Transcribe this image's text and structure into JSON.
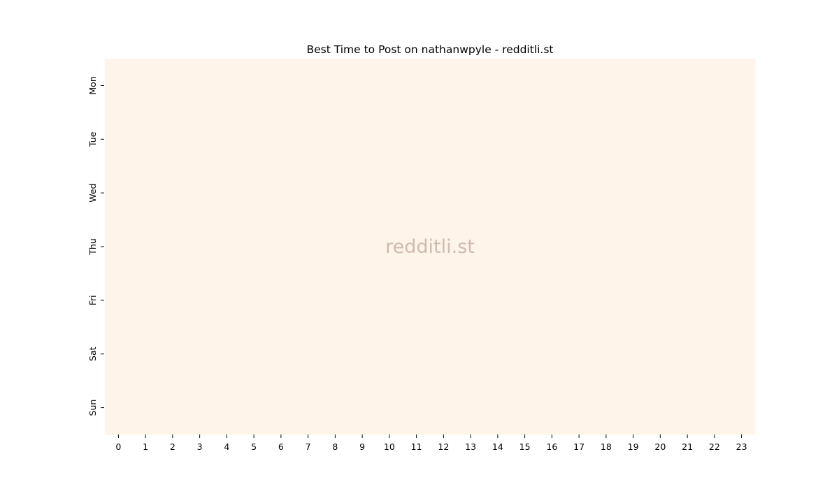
{
  "chart_data": {
    "type": "heatmap",
    "title": "Best Time to Post on nathanwpyle - redditli.st",
    "xlabel": "",
    "ylabel": "",
    "x_categories": [
      "0",
      "1",
      "2",
      "3",
      "4",
      "5",
      "6",
      "7",
      "8",
      "9",
      "10",
      "11",
      "12",
      "13",
      "14",
      "15",
      "16",
      "17",
      "18",
      "19",
      "20",
      "21",
      "22",
      "23"
    ],
    "y_categories": [
      "Mon",
      "Tue",
      "Wed",
      "Thu",
      "Fri",
      "Sat",
      "Sun"
    ],
    "values": [
      [
        0,
        0,
        0,
        0,
        0,
        0,
        0,
        0,
        0,
        0,
        0,
        0,
        0,
        0,
        0,
        0,
        0,
        0,
        0,
        0,
        0,
        0,
        0,
        0
      ],
      [
        0,
        0,
        0,
        0,
        0,
        0,
        0,
        0,
        0,
        0,
        0,
        0,
        0,
        0,
        0,
        0,
        0,
        0,
        0,
        0,
        0,
        0,
        0,
        0
      ],
      [
        0,
        0,
        0,
        0,
        0,
        0,
        0,
        0,
        0,
        0,
        0,
        0,
        0,
        0,
        0,
        0,
        0,
        0,
        0,
        0,
        0,
        0,
        0,
        0
      ],
      [
        0,
        0,
        0,
        0,
        0,
        0,
        0,
        0,
        0,
        0,
        0,
        0,
        0,
        0,
        0,
        0,
        0,
        0,
        0,
        0,
        0,
        0,
        0,
        0
      ],
      [
        0,
        0,
        0,
        0,
        0,
        0,
        0,
        0,
        0,
        0,
        0,
        0,
        0,
        0,
        0,
        0,
        0,
        0,
        0,
        0,
        0,
        0,
        0,
        0
      ],
      [
        0,
        0,
        0,
        0,
        0,
        0,
        0,
        0,
        0,
        0,
        0,
        0,
        0,
        0,
        0,
        0,
        0,
        0,
        0,
        0,
        0,
        0,
        0,
        0
      ],
      [
        0,
        0,
        0,
        0,
        0,
        0,
        0,
        0,
        0,
        0,
        0,
        0,
        0,
        0,
        0,
        0,
        0,
        0,
        0,
        0,
        0,
        0,
        0,
        0
      ]
    ],
    "colormap": "Oranges",
    "cell_color": "#fff4e9",
    "colorbar": false,
    "grid": false,
    "watermark": "redditli.st"
  }
}
